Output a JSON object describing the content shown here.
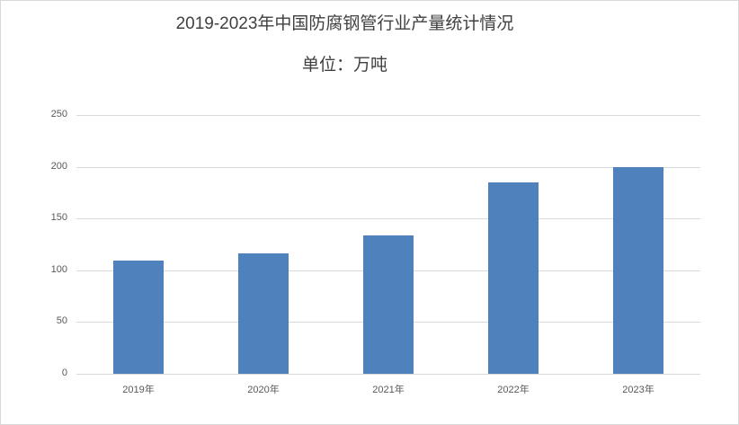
{
  "chart_data": {
    "type": "bar",
    "title": "2019-2023年中国防腐钢管行业产量统计情况",
    "subtitle": "单位：万吨",
    "categories": [
      "2019年",
      "2020年",
      "2021年",
      "2022年",
      "2023年"
    ],
    "values": [
      109,
      116,
      134,
      185,
      200
    ],
    "xlabel": "",
    "ylabel": "",
    "ylim": [
      0,
      250
    ],
    "yticks": [
      "0",
      "50",
      "100",
      "150",
      "200",
      "250"
    ],
    "grid": true,
    "legend": null,
    "bar_color": "#4f81bd"
  }
}
